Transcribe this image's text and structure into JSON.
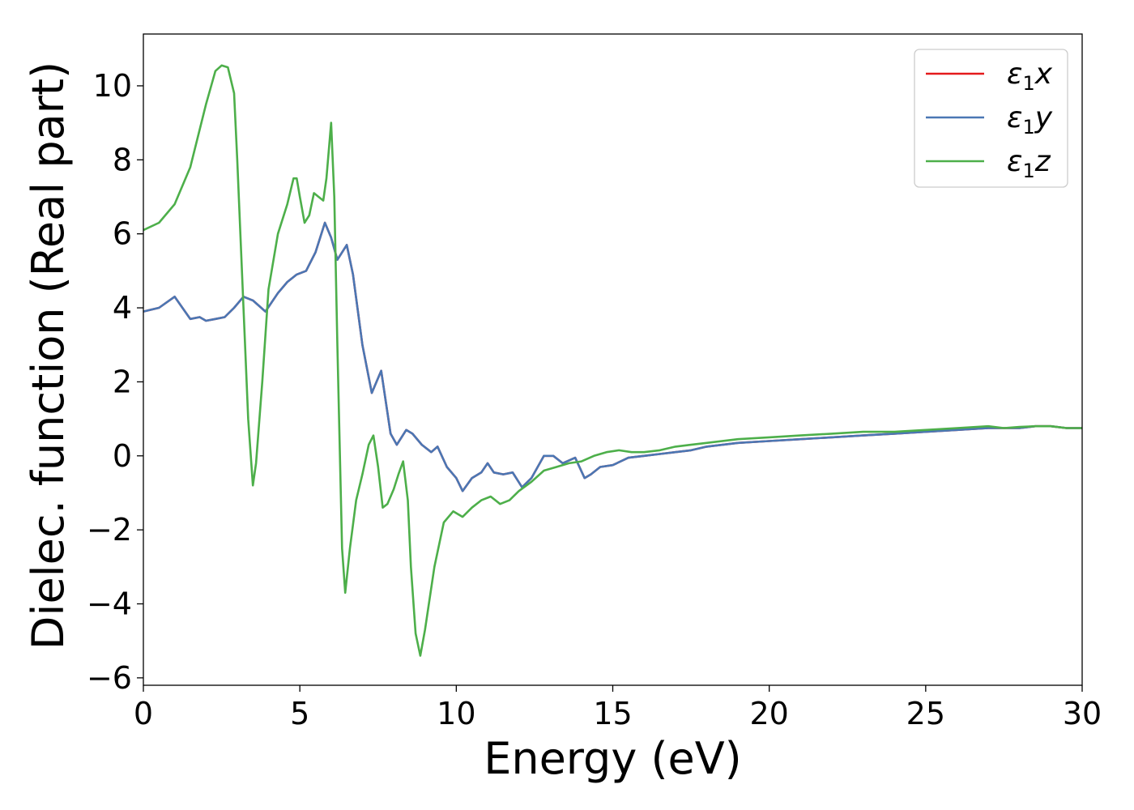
{
  "chart_data": {
    "type": "line",
    "xlabel": "Energy (eV)",
    "ylabel": "Dielec. function (Real part)",
    "xlim": [
      0,
      30
    ],
    "ylim": [
      -6.2,
      11.4
    ],
    "xticks": [
      0,
      5,
      10,
      15,
      20,
      25,
      30
    ],
    "xtick_labels": [
      "0",
      "5",
      "10",
      "15",
      "20",
      "25",
      "30"
    ],
    "yticks": [
      -6,
      -4,
      -2,
      0,
      2,
      4,
      6,
      8,
      10
    ],
    "ytick_labels": [
      "−6",
      "−4",
      "−2",
      "0",
      "2",
      "4",
      "6",
      "8",
      "10"
    ],
    "grid": false,
    "legend_position": "top-right",
    "series": [
      {
        "name": "ε1x",
        "legend_base": "ε",
        "legend_sub": "1",
        "legend_tail": "x",
        "color": "#e41a1c",
        "x": [
          0,
          0.5,
          1.0,
          1.5,
          1.8,
          2.0,
          2.3,
          2.6,
          2.9,
          3.2,
          3.5,
          3.9,
          4.3,
          4.6,
          4.9,
          5.2,
          5.5,
          5.8,
          6.0,
          6.2,
          6.5,
          6.7,
          7.0,
          7.3,
          7.6,
          7.9,
          8.1,
          8.4,
          8.6,
          8.9,
          9.2,
          9.4,
          9.7,
          10.0,
          10.2,
          10.5,
          10.8,
          11.0,
          11.2,
          11.5,
          11.8,
          12.1,
          12.4,
          12.8,
          13.1,
          13.4,
          13.8,
          14.1,
          14.3,
          14.6,
          15.0,
          15.5,
          16.0,
          16.5,
          17.0,
          17.5,
          18.0,
          19.0,
          20.0,
          21.0,
          22.0,
          23.0,
          24.0,
          25.0,
          26.0,
          27.0,
          27.5,
          28.0,
          28.5,
          29.0,
          29.5,
          30.0
        ],
        "values": [
          3.9,
          4.0,
          4.3,
          3.7,
          3.75,
          3.65,
          3.7,
          3.75,
          4.0,
          4.3,
          4.2,
          3.9,
          4.4,
          4.7,
          4.9,
          5.0,
          5.5,
          6.3,
          5.9,
          5.3,
          5.7,
          4.9,
          3.0,
          1.7,
          2.3,
          0.6,
          0.3,
          0.7,
          0.6,
          0.3,
          0.1,
          0.25,
          -0.3,
          -0.6,
          -0.95,
          -0.6,
          -0.45,
          -0.2,
          -0.45,
          -0.5,
          -0.45,
          -0.85,
          -0.6,
          0.0,
          0.0,
          -0.2,
          -0.05,
          -0.6,
          -0.5,
          -0.3,
          -0.25,
          -0.05,
          0.0,
          0.05,
          0.1,
          0.15,
          0.25,
          0.35,
          0.4,
          0.45,
          0.5,
          0.55,
          0.6,
          0.65,
          0.7,
          0.75,
          0.75,
          0.75,
          0.8,
          0.8,
          0.75,
          0.75
        ]
      },
      {
        "name": "ε1y",
        "legend_base": "ε",
        "legend_sub": "1",
        "legend_tail": "y",
        "color": "#4a77b4",
        "x": [
          0,
          0.5,
          1.0,
          1.5,
          1.8,
          2.0,
          2.3,
          2.6,
          2.9,
          3.2,
          3.5,
          3.9,
          4.3,
          4.6,
          4.9,
          5.2,
          5.5,
          5.8,
          6.0,
          6.2,
          6.5,
          6.7,
          7.0,
          7.3,
          7.6,
          7.9,
          8.1,
          8.4,
          8.6,
          8.9,
          9.2,
          9.4,
          9.7,
          10.0,
          10.2,
          10.5,
          10.8,
          11.0,
          11.2,
          11.5,
          11.8,
          12.1,
          12.4,
          12.8,
          13.1,
          13.4,
          13.8,
          14.1,
          14.3,
          14.6,
          15.0,
          15.5,
          16.0,
          16.5,
          17.0,
          17.5,
          18.0,
          19.0,
          20.0,
          21.0,
          22.0,
          23.0,
          24.0,
          25.0,
          26.0,
          27.0,
          27.5,
          28.0,
          28.5,
          29.0,
          29.5,
          30.0
        ],
        "values": [
          3.9,
          4.0,
          4.3,
          3.7,
          3.75,
          3.65,
          3.7,
          3.75,
          4.0,
          4.3,
          4.2,
          3.9,
          4.4,
          4.7,
          4.9,
          5.0,
          5.5,
          6.3,
          5.9,
          5.3,
          5.7,
          4.9,
          3.0,
          1.7,
          2.3,
          0.6,
          0.3,
          0.7,
          0.6,
          0.3,
          0.1,
          0.25,
          -0.3,
          -0.6,
          -0.95,
          -0.6,
          -0.45,
          -0.2,
          -0.45,
          -0.5,
          -0.45,
          -0.85,
          -0.6,
          0.0,
          0.0,
          -0.2,
          -0.05,
          -0.6,
          -0.5,
          -0.3,
          -0.25,
          -0.05,
          0.0,
          0.05,
          0.1,
          0.15,
          0.25,
          0.35,
          0.4,
          0.45,
          0.5,
          0.55,
          0.6,
          0.65,
          0.7,
          0.75,
          0.75,
          0.75,
          0.8,
          0.8,
          0.75,
          0.75
        ]
      },
      {
        "name": "ε1z",
        "legend_base": "ε",
        "legend_sub": "1",
        "legend_tail": "z",
        "color": "#4daf4a",
        "x": [
          0,
          0.5,
          1.0,
          1.5,
          2.0,
          2.3,
          2.5,
          2.7,
          2.9,
          3.0,
          3.2,
          3.35,
          3.5,
          3.6,
          3.8,
          4.0,
          4.3,
          4.6,
          4.8,
          4.9,
          5.0,
          5.15,
          5.3,
          5.45,
          5.6,
          5.75,
          5.85,
          6.0,
          6.1,
          6.2,
          6.35,
          6.45,
          6.6,
          6.8,
          7.0,
          7.2,
          7.35,
          7.5,
          7.65,
          7.8,
          8.0,
          8.15,
          8.3,
          8.45,
          8.55,
          8.7,
          8.85,
          9.0,
          9.3,
          9.6,
          9.9,
          10.2,
          10.5,
          10.8,
          11.1,
          11.4,
          11.7,
          12.0,
          12.4,
          12.8,
          13.2,
          13.6,
          14.0,
          14.4,
          14.8,
          15.2,
          15.6,
          16.0,
          16.5,
          17.0,
          17.5,
          18.0,
          19.0,
          20.0,
          21.0,
          22.0,
          23.0,
          24.0,
          25.0,
          26.0,
          27.0,
          27.5,
          28.0,
          28.5,
          29.0,
          29.5,
          30.0
        ],
        "values": [
          6.1,
          6.3,
          6.8,
          7.8,
          9.5,
          10.4,
          10.55,
          10.5,
          9.8,
          8.0,
          4.0,
          1.0,
          -0.8,
          -0.2,
          2.0,
          4.5,
          6.0,
          6.8,
          7.5,
          7.5,
          7.0,
          6.3,
          6.5,
          7.1,
          7.0,
          6.9,
          7.5,
          9.0,
          7.0,
          3.0,
          -2.5,
          -3.7,
          -2.5,
          -1.2,
          -0.5,
          0.3,
          0.55,
          -0.3,
          -1.4,
          -1.3,
          -0.9,
          -0.5,
          -0.15,
          -1.2,
          -3.0,
          -4.8,
          -5.4,
          -4.7,
          -3.0,
          -1.8,
          -1.5,
          -1.65,
          -1.4,
          -1.2,
          -1.1,
          -1.3,
          -1.2,
          -0.95,
          -0.7,
          -0.4,
          -0.3,
          -0.2,
          -0.15,
          0.0,
          0.1,
          0.15,
          0.1,
          0.1,
          0.15,
          0.25,
          0.3,
          0.35,
          0.45,
          0.5,
          0.55,
          0.6,
          0.65,
          0.65,
          0.7,
          0.75,
          0.8,
          0.75,
          0.78,
          0.8,
          0.8,
          0.75,
          0.75
        ]
      }
    ]
  }
}
